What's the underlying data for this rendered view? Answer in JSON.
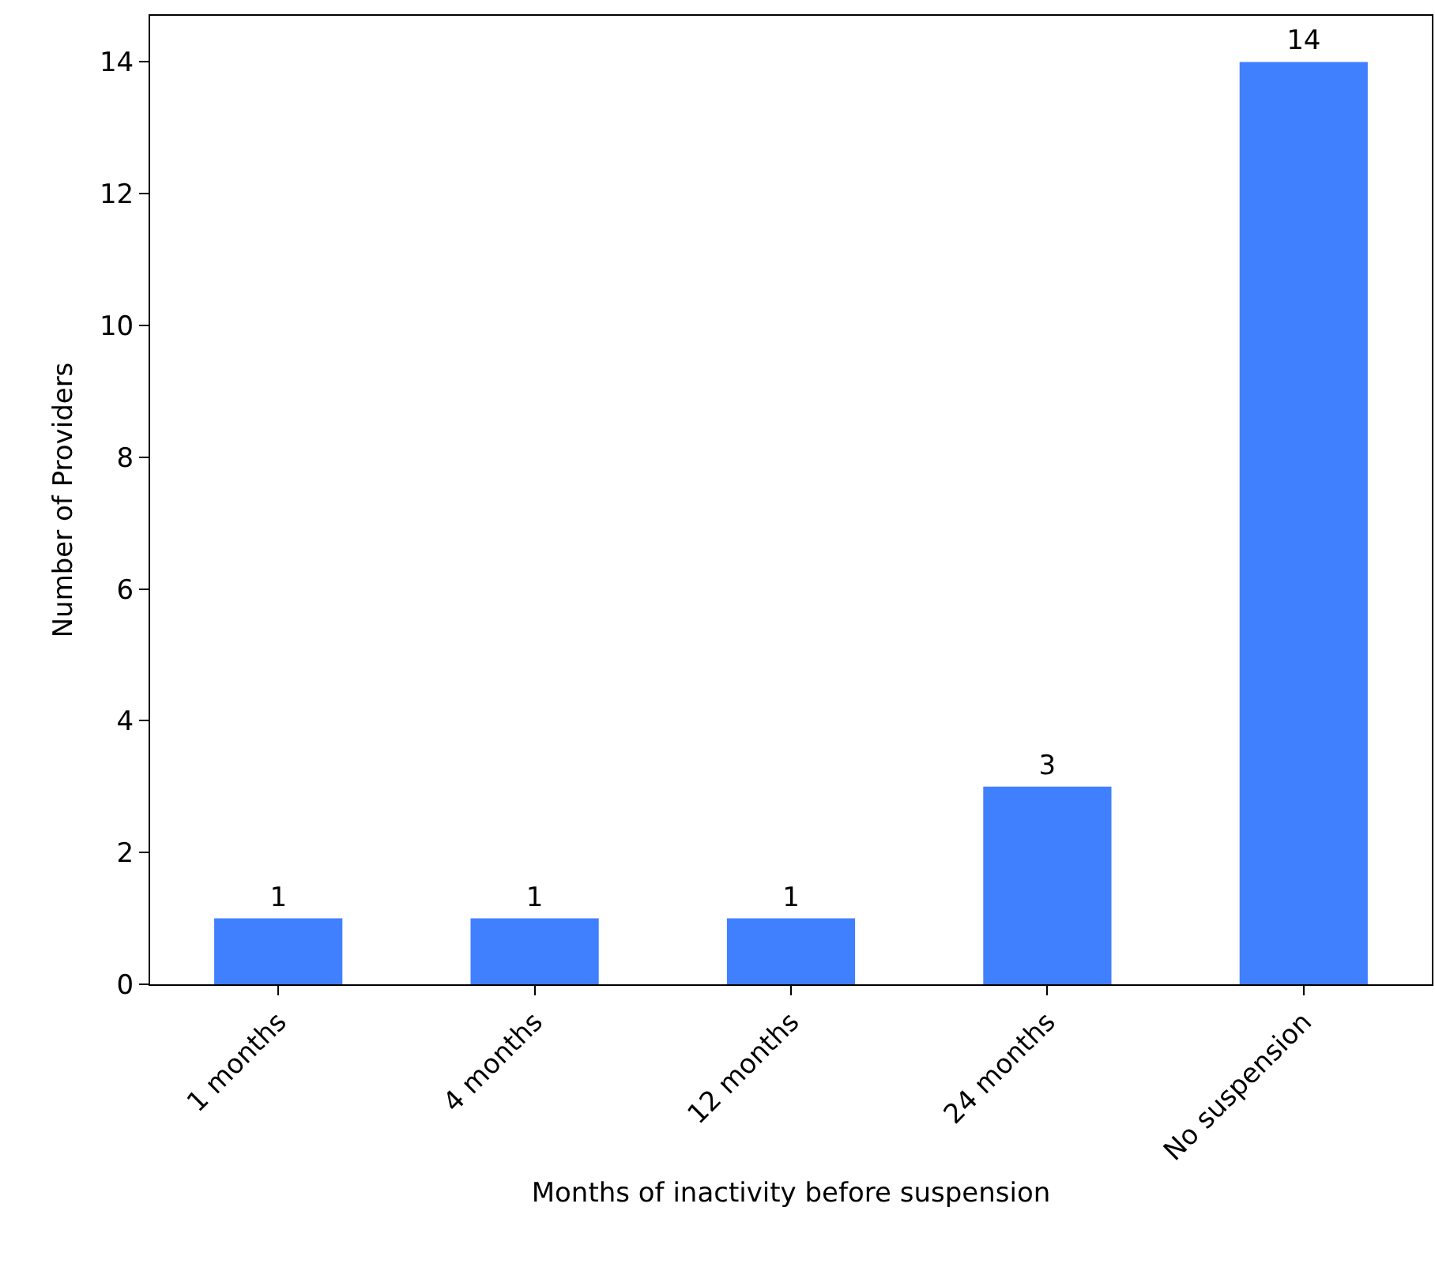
{
  "chart_data": {
    "type": "bar",
    "xlabel": "Months of inactivity before suspension",
    "ylabel": "Number of Providers",
    "categories": [
      "1 months",
      "4 months",
      "12 months",
      "24 months",
      "No suspension"
    ],
    "values": [
      1,
      1,
      1,
      3,
      14
    ],
    "color": "#4080ff",
    "data_labels": true,
    "ylim": [
      0,
      14.7
    ],
    "yticks": [
      0,
      2,
      4,
      6,
      8,
      10,
      12,
      14
    ],
    "grid": false,
    "legend": false
  }
}
